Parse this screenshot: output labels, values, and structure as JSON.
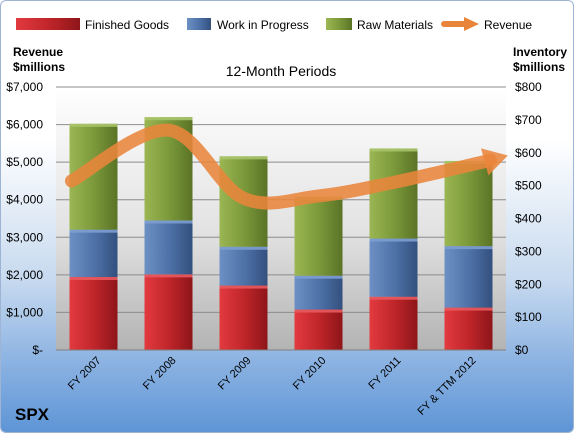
{
  "company": "SPX",
  "chart_data": {
    "type": "bar",
    "stacked": true,
    "title": "12-Month Periods",
    "categories": [
      "FY 2007",
      "FY 2008",
      "FY 2009",
      "FY 2010",
      "FY 2011",
      "FY & TTM 2012"
    ],
    "left_axis": {
      "label_lines": [
        "Revenue",
        "$millions"
      ],
      "ylim": [
        0,
        7000
      ],
      "ticks": [
        0,
        1000,
        2000,
        3000,
        4000,
        5000,
        6000,
        7000
      ],
      "tick_labels": [
        "$-",
        "$1,000",
        "$2,000",
        "$3,000",
        "$4,000",
        "$5,000",
        "$6,000",
        "$7,000"
      ]
    },
    "right_axis": {
      "label_lines": [
        "Inventory",
        "$millions"
      ],
      "ylim": [
        0,
        800
      ],
      "ticks": [
        0,
        100,
        200,
        300,
        400,
        500,
        600,
        700,
        800
      ],
      "tick_labels": [
        "$0",
        "$100",
        "$200",
        "$300",
        "$400",
        "$500",
        "$600",
        "$700",
        "$800"
      ]
    },
    "series": [
      {
        "name": "Finished Goods",
        "axis": "right",
        "kind": "bar",
        "color": "#c0262b",
        "values": [
          222,
          230,
          196,
          123,
          162,
          129
        ]
      },
      {
        "name": "Work in Progress",
        "axis": "right",
        "kind": "bar",
        "color": "#4f73a9",
        "values": [
          144,
          164,
          118,
          103,
          177,
          187
        ]
      },
      {
        "name": "Raw Materials",
        "axis": "right",
        "kind": "bar",
        "color": "#7c9a3b",
        "values": [
          322,
          314,
          275,
          240,
          274,
          259
        ]
      },
      {
        "name": "Revenue",
        "axis": "left",
        "kind": "line",
        "color": "#e9853b",
        "values": [
          4500,
          5850,
          4040,
          4100,
          4460,
          5050
        ]
      }
    ],
    "legend_position": "top",
    "grid": true
  }
}
